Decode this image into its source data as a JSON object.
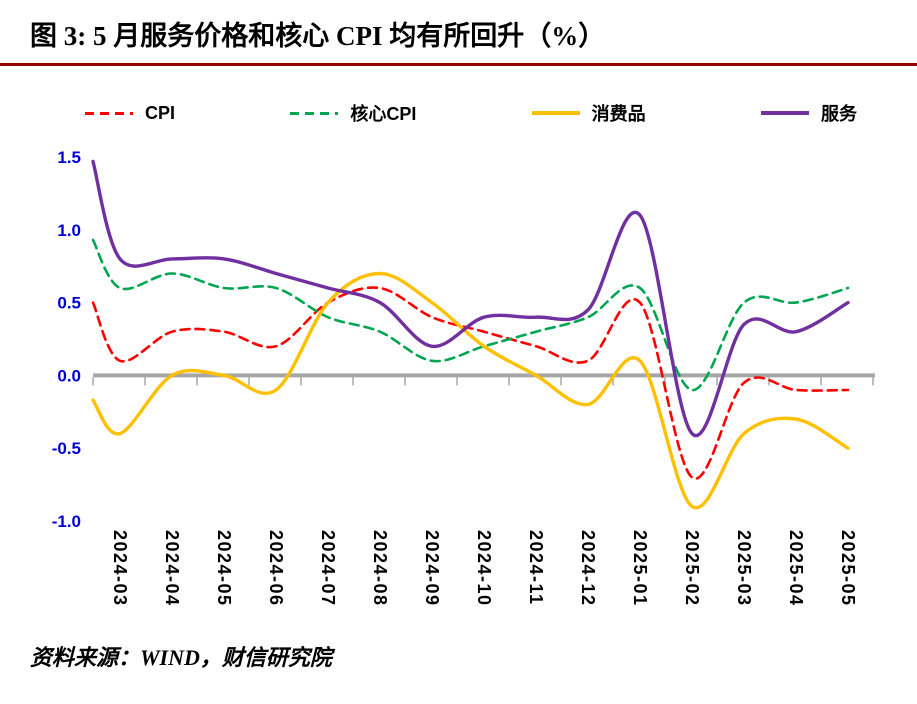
{
  "title": "图 3:  5 月服务价格和核心 CPI 均有所回升（%）",
  "source_note": "资料来源：WIND，财信研究院",
  "colors": {
    "title_rule": "#990000",
    "zero_axis": "#A6A6A6",
    "y_axis_label": "#0000D6",
    "x_axis_label": "#000000"
  },
  "chart_data": {
    "type": "line",
    "title": "图 3:  5 月服务价格和核心 CPI 均有所回升（%）",
    "unit": "%",
    "categories": [
      "2024-03",
      "2024-04",
      "2024-05",
      "2024-06",
      "2024-07",
      "2024-08",
      "2024-09",
      "2024-10",
      "2024-11",
      "2024-12",
      "2025-01",
      "2025-02",
      "2025-03",
      "2025-04",
      "2025-05"
    ],
    "ylim": [
      -1.0,
      1.5
    ],
    "yticks": [
      1.5,
      1.0,
      0.5,
      0.0,
      -0.5,
      -1.0
    ],
    "grid": false,
    "legend_position": "top",
    "series": [
      {
        "key": "cpi",
        "name": "CPI",
        "color": "#FF0000",
        "style": "dashed",
        "left_edge_value": 0.5,
        "values": [
          0.1,
          0.3,
          0.3,
          0.2,
          0.5,
          0.6,
          0.4,
          0.3,
          0.2,
          0.1,
          0.5,
          -0.7,
          -0.05,
          -0.1,
          -0.1
        ]
      },
      {
        "key": "core-cpi",
        "name": "核心CPI",
        "color": "#00A550",
        "style": "dashed",
        "left_edge_value": 0.93,
        "values": [
          0.6,
          0.7,
          0.6,
          0.6,
          0.4,
          0.3,
          0.1,
          0.2,
          0.3,
          0.4,
          0.6,
          -0.1,
          0.5,
          0.5,
          0.6
        ]
      },
      {
        "key": "consumer-goods",
        "name": "消费品",
        "color": "#FFC000",
        "style": "solid",
        "left_edge_value": -0.17,
        "values": [
          -0.4,
          0.0,
          0.0,
          -0.1,
          0.5,
          0.7,
          0.5,
          0.2,
          0.0,
          -0.2,
          0.1,
          -0.9,
          -0.4,
          -0.3,
          -0.5
        ]
      },
      {
        "key": "services",
        "name": "服务",
        "color": "#7030A0",
        "style": "solid",
        "left_edge_value": 1.47,
        "values": [
          0.8,
          0.8,
          0.8,
          0.7,
          0.6,
          0.5,
          0.2,
          0.4,
          0.4,
          0.45,
          1.1,
          -0.4,
          0.35,
          0.3,
          0.5
        ]
      }
    ]
  }
}
